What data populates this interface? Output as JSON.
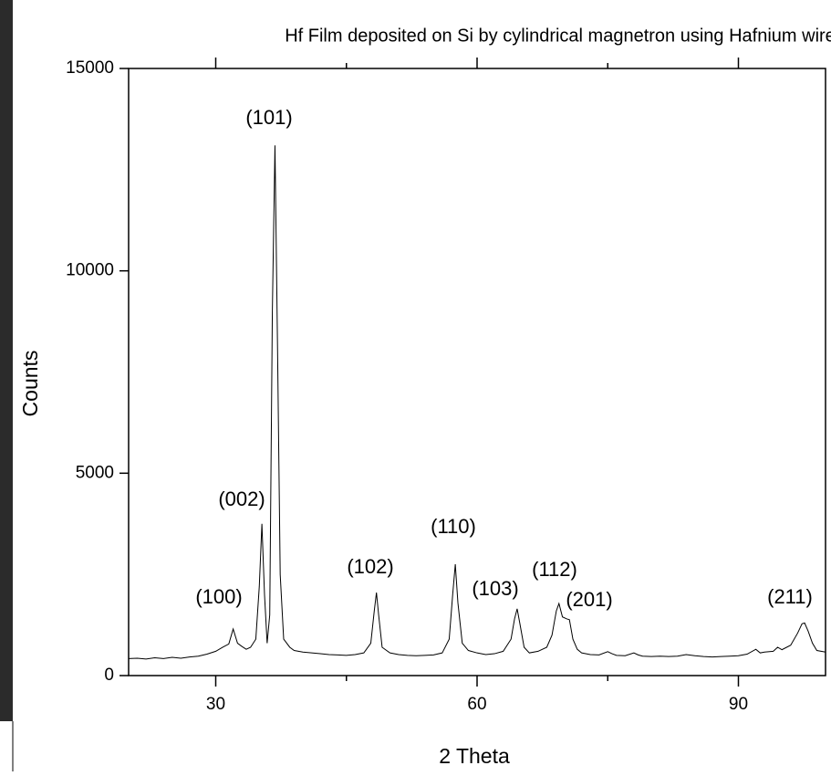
{
  "chart_data": {
    "type": "line",
    "title": "Hf Film deposited on Si by cylindrical magnetron using Hafnium wire",
    "x_label": "2 Theta",
    "y_label": "Counts",
    "color": "#000000",
    "xlim": [
      20,
      100
    ],
    "ylim": [
      0,
      15000
    ],
    "xticks": [
      30,
      60,
      90
    ],
    "xminor_ticks": [
      45,
      75
    ],
    "yticks": [
      0,
      5000,
      10000,
      15000
    ],
    "annotations": [
      "(100)",
      "(002)",
      "(101)",
      "(102)",
      "(110)",
      "(103)",
      "(112)",
      "(201)",
      "(211)"
    ],
    "x": [
      20,
      21,
      22,
      23,
      24,
      25,
      26,
      27,
      28,
      29,
      30,
      30.8,
      31.5,
      32,
      32.5,
      33,
      33.5,
      34,
      34.6,
      35,
      35.3,
      35.6,
      35.9,
      36.2,
      36.5,
      36.8,
      37.1,
      37.4,
      37.8,
      38.5,
      39,
      40,
      41,
      42,
      43,
      44,
      45,
      46,
      47,
      47.8,
      48.2,
      48.45,
      48.7,
      49.1,
      50,
      51,
      52,
      53,
      54,
      55,
      56,
      56.8,
      57.2,
      57.5,
      57.8,
      58.3,
      59,
      60,
      61,
      62,
      63,
      63.9,
      64.3,
      64.6,
      64.9,
      65.4,
      66,
      67,
      68,
      68.6,
      69.1,
      69.4,
      69.8,
      70.3,
      70.6,
      71,
      71.5,
      72,
      73,
      74,
      75,
      75.5,
      76,
      77,
      78,
      78.5,
      79,
      80,
      81,
      82,
      83,
      84,
      85,
      86,
      87,
      88,
      89,
      90,
      91,
      92,
      92.5,
      93,
      94,
      94.5,
      95,
      96,
      96.8,
      97.3,
      97.6,
      98,
      98.5,
      99,
      100
    ],
    "values": [
      420,
      430,
      410,
      440,
      420,
      450,
      430,
      460,
      480,
      530,
      600,
      700,
      780,
      1150,
      800,
      720,
      650,
      700,
      900,
      2200,
      3750,
      2000,
      800,
      1500,
      9000,
      13100,
      8000,
      2500,
      900,
      700,
      620,
      580,
      560,
      540,
      520,
      510,
      500,
      520,
      560,
      800,
      1600,
      2050,
      1500,
      700,
      560,
      520,
      500,
      490,
      500,
      510,
      560,
      900,
      2000,
      2750,
      1800,
      800,
      620,
      560,
      520,
      540,
      600,
      900,
      1400,
      1650,
      1300,
      700,
      560,
      600,
      700,
      1000,
      1600,
      1780,
      1450,
      1400,
      1380,
      900,
      650,
      560,
      520,
      510,
      590,
      540,
      500,
      490,
      560,
      510,
      480,
      470,
      480,
      470,
      480,
      520,
      490,
      470,
      460,
      470,
      480,
      490,
      530,
      650,
      560,
      580,
      600,
      700,
      640,
      750,
      1050,
      1280,
      1300,
      1100,
      800,
      620,
      580
    ]
  }
}
